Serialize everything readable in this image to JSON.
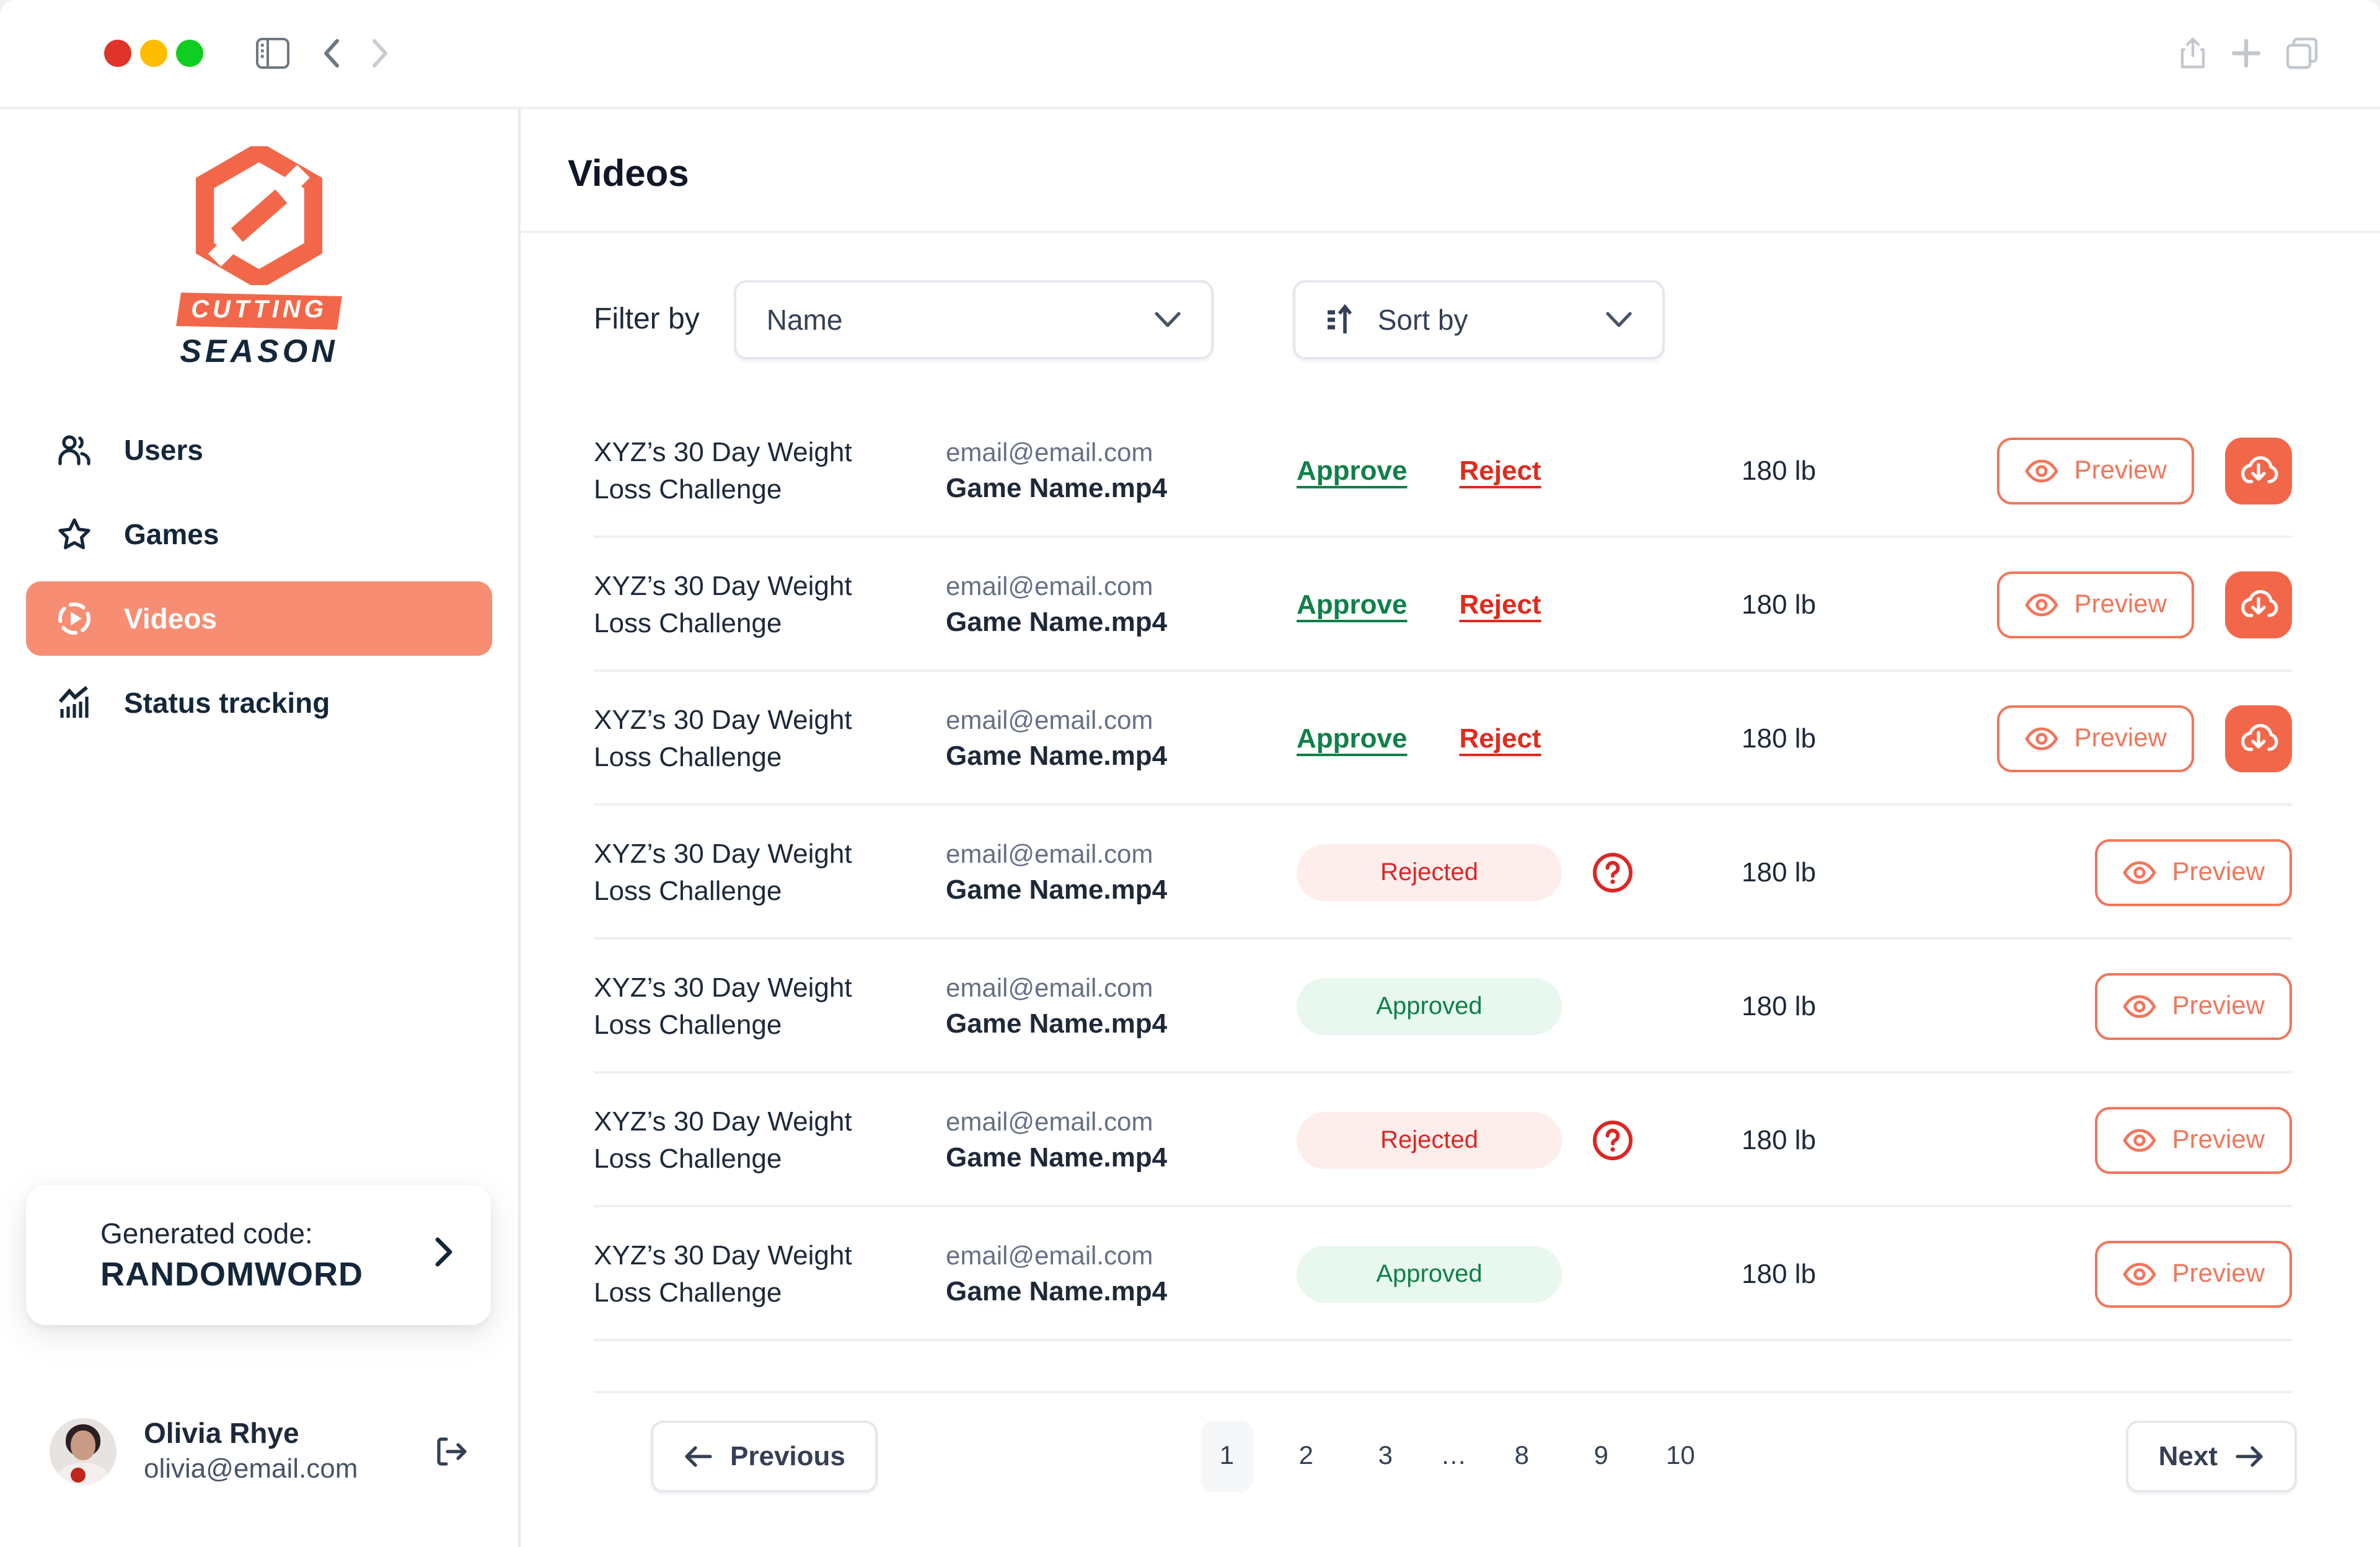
{
  "colors": {
    "accent_coral": "#F26749",
    "accent_coral_light": "#F78D72",
    "approve_green": "#0F8048",
    "reject_red": "#E02B1D",
    "badge_rejected_bg": "#FDEEEC",
    "badge_approved_bg": "#E8F8EF",
    "text_dark": "#1D2939",
    "text_gray": "#667085"
  },
  "icons": {
    "traffic_lights": [
      "close-red",
      "minimize-yellow",
      "zoom-green"
    ],
    "toolbar_left": [
      "sidebar-toggle-icon",
      "chevron-left-icon",
      "chevron-right-icon"
    ],
    "toolbar_right": [
      "share-icon",
      "plus-icon",
      "copy-tabs-icon"
    ],
    "nav": [
      "users-icon",
      "star-icon",
      "play-circle-icon",
      "chart-trend-icon"
    ],
    "other": [
      "sort-ascending-icon",
      "chevron-down-icon",
      "eye-icon",
      "cloud-download-icon",
      "help-circle-icon",
      "arrow-left-icon",
      "arrow-right-icon",
      "chevron-right-icon",
      "logout-icon"
    ]
  },
  "sidebar": {
    "brand": {
      "banner": "CUTTING",
      "sub": "SEASON"
    },
    "items": [
      {
        "label": "Users",
        "active": false
      },
      {
        "label": "Games",
        "active": false
      },
      {
        "label": "Videos",
        "active": true
      },
      {
        "label": "Status tracking",
        "active": false
      }
    ],
    "generated_code": {
      "label": "Generated code:",
      "code": "RANDOMWORD"
    },
    "user": {
      "name": "Olivia Rhye",
      "email": "olivia@email.com"
    }
  },
  "main": {
    "title": "Videos",
    "filter_label": "Filter by",
    "filter_value": "Name",
    "sort_value": "Sort by",
    "labels": {
      "approve": "Approve",
      "reject": "Reject",
      "preview": "Preview",
      "rejected": "Rejected",
      "approved": "Approved"
    },
    "rows": [
      {
        "title": "XYZ’s 30 Day Weight Loss Challenge",
        "email": "email@email.com",
        "file": "Game Name.mp4",
        "status": "pending",
        "weight": "180 lb"
      },
      {
        "title": "XYZ’s 30 Day Weight Loss Challenge",
        "email": "email@email.com",
        "file": "Game Name.mp4",
        "status": "pending",
        "weight": "180 lb"
      },
      {
        "title": "XYZ’s 30 Day Weight Loss Challenge",
        "email": "email@email.com",
        "file": "Game Name.mp4",
        "status": "pending",
        "weight": "180 lb"
      },
      {
        "title": "XYZ’s 30 Day Weight Loss Challenge",
        "email": "email@email.com",
        "file": "Game Name.mp4",
        "status": "rejected",
        "weight": "180 lb"
      },
      {
        "title": "XYZ’s 30 Day Weight Loss Challenge",
        "email": "email@email.com",
        "file": "Game Name.mp4",
        "status": "approved",
        "weight": "180 lb"
      },
      {
        "title": "XYZ’s 30 Day Weight Loss Challenge",
        "email": "email@email.com",
        "file": "Game Name.mp4",
        "status": "rejected",
        "weight": "180 lb"
      },
      {
        "title": "XYZ’s 30 Day Weight Loss Challenge",
        "email": "email@email.com",
        "file": "Game Name.mp4",
        "status": "approved",
        "weight": "180 lb"
      }
    ],
    "pagination": {
      "previous": "Previous",
      "next": "Next",
      "pages": [
        "1",
        "2",
        "3",
        "…",
        "8",
        "9",
        "10"
      ],
      "active_page": "1"
    }
  }
}
